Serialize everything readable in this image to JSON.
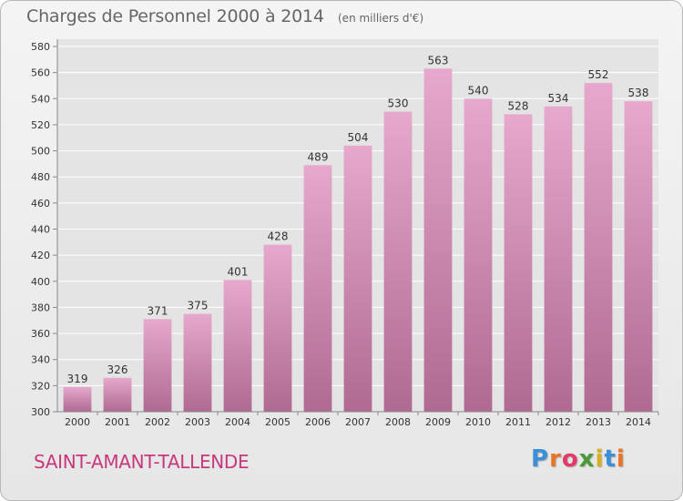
{
  "header": {
    "title": "Charges de Personnel 2000 à 2014",
    "subtitle": "(en milliers d'€)"
  },
  "footer": {
    "place": "SAINT-AMANT-TALLENDE",
    "logo_text": "Proxiti",
    "logo_colors": [
      "#3a8fd6",
      "#e8742a",
      "#e23a6b",
      "#4a9a3a",
      "#d8b21e",
      "#3a8fd6",
      "#e8742a"
    ]
  },
  "colors": {
    "bar_top": "#e6a8cc",
    "bar_bottom": "#b06a92",
    "grid": "#ffffff",
    "axis_text": "#333333"
  },
  "chart_data": {
    "type": "bar",
    "title": "Charges de Personnel 2000 à 2014",
    "subtitle": "(en milliers d'€)",
    "categories": [
      "2000",
      "2001",
      "2002",
      "2003",
      "2004",
      "2005",
      "2006",
      "2007",
      "2008",
      "2009",
      "2010",
      "2011",
      "2012",
      "2013",
      "2014"
    ],
    "values": [
      319,
      326,
      371,
      375,
      401,
      428,
      489,
      504,
      530,
      563,
      540,
      528,
      534,
      552,
      538
    ],
    "ylim": [
      300,
      580
    ],
    "yticks": [
      300,
      320,
      340,
      360,
      380,
      400,
      420,
      440,
      460,
      480,
      500,
      520,
      540,
      560,
      580
    ],
    "grid": true,
    "data_labels": true
  }
}
